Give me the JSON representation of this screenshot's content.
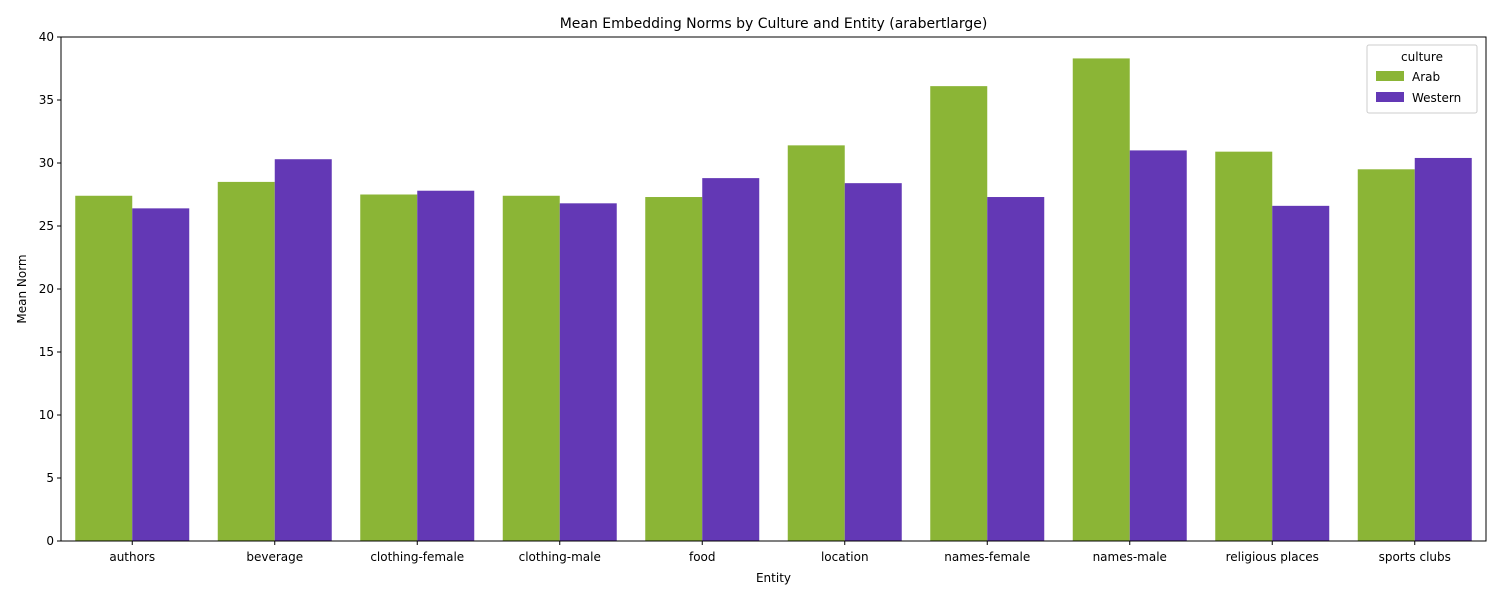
{
  "chart_data": {
    "type": "bar",
    "title": "Mean Embedding Norms by Culture and Entity (arabertlarge)",
    "xlabel": "Entity",
    "ylabel": "Mean Norm",
    "ylim": [
      0,
      40
    ],
    "yticks": [
      0,
      5,
      10,
      15,
      20,
      25,
      30,
      35,
      40
    ],
    "categories": [
      "authors",
      "beverage",
      "clothing-female",
      "clothing-male",
      "food",
      "location",
      "names-female",
      "names-male",
      "religious places",
      "sports clubs"
    ],
    "series": [
      {
        "name": "Arab",
        "color": "#8bb536",
        "values": [
          27.4,
          28.5,
          27.5,
          27.4,
          27.3,
          31.4,
          36.1,
          38.3,
          30.9,
          29.5
        ]
      },
      {
        "name": "Western",
        "color": "#6338b5",
        "values": [
          26.4,
          30.3,
          27.8,
          26.8,
          28.8,
          28.4,
          27.3,
          31.0,
          26.6,
          30.4
        ]
      }
    ],
    "legend": {
      "title": "culture",
      "position": "top-right"
    },
    "grid": false
  }
}
